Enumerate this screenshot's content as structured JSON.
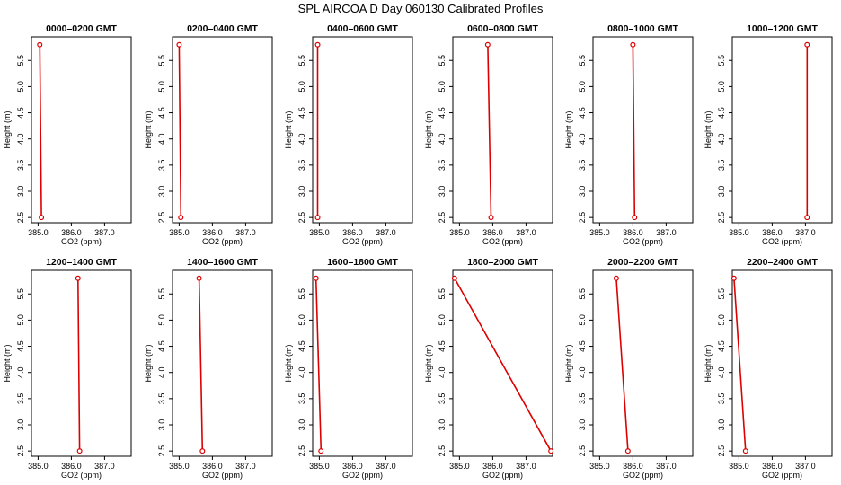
{
  "figure": {
    "title": "SPL AIRCOA D  Day 060130  Calibrated Profiles"
  },
  "chart_data": [
    {
      "type": "line",
      "title": "0000–0200 GMT",
      "xlabel": "GO2 (ppm)",
      "ylabel": "Height (m)",
      "xlim": [
        384.8,
        387.8
      ],
      "ylim": [
        2.4,
        5.95
      ],
      "xticks": [
        "385.0",
        "386.0",
        "387.0"
      ],
      "yticks": [
        "2.5",
        "3.0",
        "3.5",
        "4.0",
        "4.5",
        "5.0",
        "5.5"
      ],
      "series": [
        {
          "x": [
            385.05,
            385.1
          ],
          "y": [
            5.8,
            2.5
          ]
        }
      ]
    },
    {
      "type": "line",
      "title": "0200–0400 GMT",
      "xlabel": "GO2 (ppm)",
      "ylabel": "Height (m)",
      "xlim": [
        384.8,
        387.8
      ],
      "ylim": [
        2.4,
        5.95
      ],
      "xticks": [
        "385.0",
        "386.0",
        "387.0"
      ],
      "yticks": [
        "2.5",
        "3.0",
        "3.5",
        "4.0",
        "4.5",
        "5.0",
        "5.5"
      ],
      "series": [
        {
          "x": [
            385.0,
            385.05
          ],
          "y": [
            5.8,
            2.5
          ]
        }
      ]
    },
    {
      "type": "line",
      "title": "0400–0600 GMT",
      "xlabel": "GO2 (ppm)",
      "ylabel": "Height (m)",
      "xlim": [
        384.8,
        387.8
      ],
      "ylim": [
        2.4,
        5.95
      ],
      "xticks": [
        "385.0",
        "386.0",
        "387.0"
      ],
      "yticks": [
        "2.5",
        "3.0",
        "3.5",
        "4.0",
        "4.5",
        "5.0",
        "5.5"
      ],
      "series": [
        {
          "x": [
            384.95,
            384.95
          ],
          "y": [
            5.8,
            2.5
          ]
        }
      ]
    },
    {
      "type": "line",
      "title": "0600–0800 GMT",
      "xlabel": "GO2 (ppm)",
      "ylabel": "Height (m)",
      "xlim": [
        384.8,
        387.8
      ],
      "ylim": [
        2.4,
        5.95
      ],
      "xticks": [
        "385.0",
        "386.0",
        "387.0"
      ],
      "yticks": [
        "2.5",
        "3.0",
        "3.5",
        "4.0",
        "4.5",
        "5.0",
        "5.5"
      ],
      "series": [
        {
          "x": [
            385.85,
            385.95
          ],
          "y": [
            5.8,
            2.5
          ]
        }
      ]
    },
    {
      "type": "line",
      "title": "0800–1000 GMT",
      "xlabel": "GO2 (ppm)",
      "ylabel": "Height (m)",
      "xlim": [
        384.8,
        387.8
      ],
      "ylim": [
        2.4,
        5.95
      ],
      "xticks": [
        "385.0",
        "386.0",
        "387.0"
      ],
      "yticks": [
        "2.5",
        "3.0",
        "3.5",
        "4.0",
        "4.5",
        "5.0",
        "5.5"
      ],
      "series": [
        {
          "x": [
            386.0,
            386.05
          ],
          "y": [
            5.8,
            2.5
          ]
        }
      ]
    },
    {
      "type": "line",
      "title": "1000–1200 GMT",
      "xlabel": "GO2 (ppm)",
      "ylabel": "Height (m)",
      "xlim": [
        384.8,
        387.8
      ],
      "ylim": [
        2.4,
        5.95
      ],
      "xticks": [
        "385.0",
        "386.0",
        "387.0"
      ],
      "yticks": [
        "2.5",
        "3.0",
        "3.5",
        "4.0",
        "4.5",
        "5.0",
        "5.5"
      ],
      "series": [
        {
          "x": [
            387.05,
            387.05
          ],
          "y": [
            5.8,
            2.5
          ]
        }
      ]
    },
    {
      "type": "line",
      "title": "1200–1400 GMT",
      "xlabel": "GO2 (ppm)",
      "ylabel": "Height (m)",
      "xlim": [
        384.8,
        387.8
      ],
      "ylim": [
        2.4,
        5.95
      ],
      "xticks": [
        "385.0",
        "386.0",
        "387.0"
      ],
      "yticks": [
        "2.5",
        "3.0",
        "3.5",
        "4.0",
        "4.5",
        "5.0",
        "5.5"
      ],
      "series": [
        {
          "x": [
            386.2,
            386.25
          ],
          "y": [
            5.8,
            2.5
          ]
        }
      ]
    },
    {
      "type": "line",
      "title": "1400–1600 GMT",
      "xlabel": "GO2 (ppm)",
      "ylabel": "Height (m)",
      "xlim": [
        384.8,
        387.8
      ],
      "ylim": [
        2.4,
        5.95
      ],
      "xticks": [
        "385.0",
        "386.0",
        "387.0"
      ],
      "yticks": [
        "2.5",
        "3.0",
        "3.5",
        "4.0",
        "4.5",
        "5.0",
        "5.5"
      ],
      "series": [
        {
          "x": [
            385.6,
            385.7
          ],
          "y": [
            5.8,
            2.5
          ]
        }
      ]
    },
    {
      "type": "line",
      "title": "1600–1800 GMT",
      "xlabel": "GO2 (ppm)",
      "ylabel": "Height (m)",
      "xlim": [
        384.8,
        387.8
      ],
      "ylim": [
        2.4,
        5.95
      ],
      "xticks": [
        "385.0",
        "386.0",
        "387.0"
      ],
      "yticks": [
        "2.5",
        "3.0",
        "3.5",
        "4.0",
        "4.5",
        "5.0",
        "5.5"
      ],
      "series": [
        {
          "x": [
            384.9,
            385.05
          ],
          "y": [
            5.8,
            2.5
          ]
        }
      ]
    },
    {
      "type": "line",
      "title": "1800–2000 GMT",
      "xlabel": "GO2 (ppm)",
      "ylabel": "Height (m)",
      "xlim": [
        384.8,
        387.8
      ],
      "ylim": [
        2.4,
        5.95
      ],
      "xticks": [
        "385.0",
        "386.0",
        "387.0"
      ],
      "yticks": [
        "2.5",
        "3.0",
        "3.5",
        "4.0",
        "4.5",
        "5.0",
        "5.5"
      ],
      "series": [
        {
          "x": [
            384.85,
            387.75
          ],
          "y": [
            5.8,
            2.5
          ]
        }
      ]
    },
    {
      "type": "line",
      "title": "2000–2200 GMT",
      "xlabel": "GO2 (ppm)",
      "ylabel": "Height (m)",
      "xlim": [
        384.8,
        387.8
      ],
      "ylim": [
        2.4,
        5.95
      ],
      "xticks": [
        "385.0",
        "386.0",
        "387.0"
      ],
      "yticks": [
        "2.5",
        "3.0",
        "3.5",
        "4.0",
        "4.5",
        "5.0",
        "5.5"
      ],
      "series": [
        {
          "x": [
            385.5,
            385.85
          ],
          "y": [
            5.8,
            2.5
          ]
        }
      ]
    },
    {
      "type": "line",
      "title": "2200–2400 GMT",
      "xlabel": "GO2 (ppm)",
      "ylabel": "Height (m)",
      "xlim": [
        384.8,
        387.8
      ],
      "ylim": [
        2.4,
        5.95
      ],
      "xticks": [
        "385.0",
        "386.0",
        "387.0"
      ],
      "yticks": [
        "2.5",
        "3.0",
        "3.5",
        "4.0",
        "4.5",
        "5.0",
        "5.5"
      ],
      "series": [
        {
          "x": [
            384.85,
            385.2
          ],
          "y": [
            5.8,
            2.5
          ]
        }
      ]
    }
  ],
  "colors": {
    "series_line": "#dd0000",
    "axis": "#000000",
    "background": "#ffffff"
  }
}
